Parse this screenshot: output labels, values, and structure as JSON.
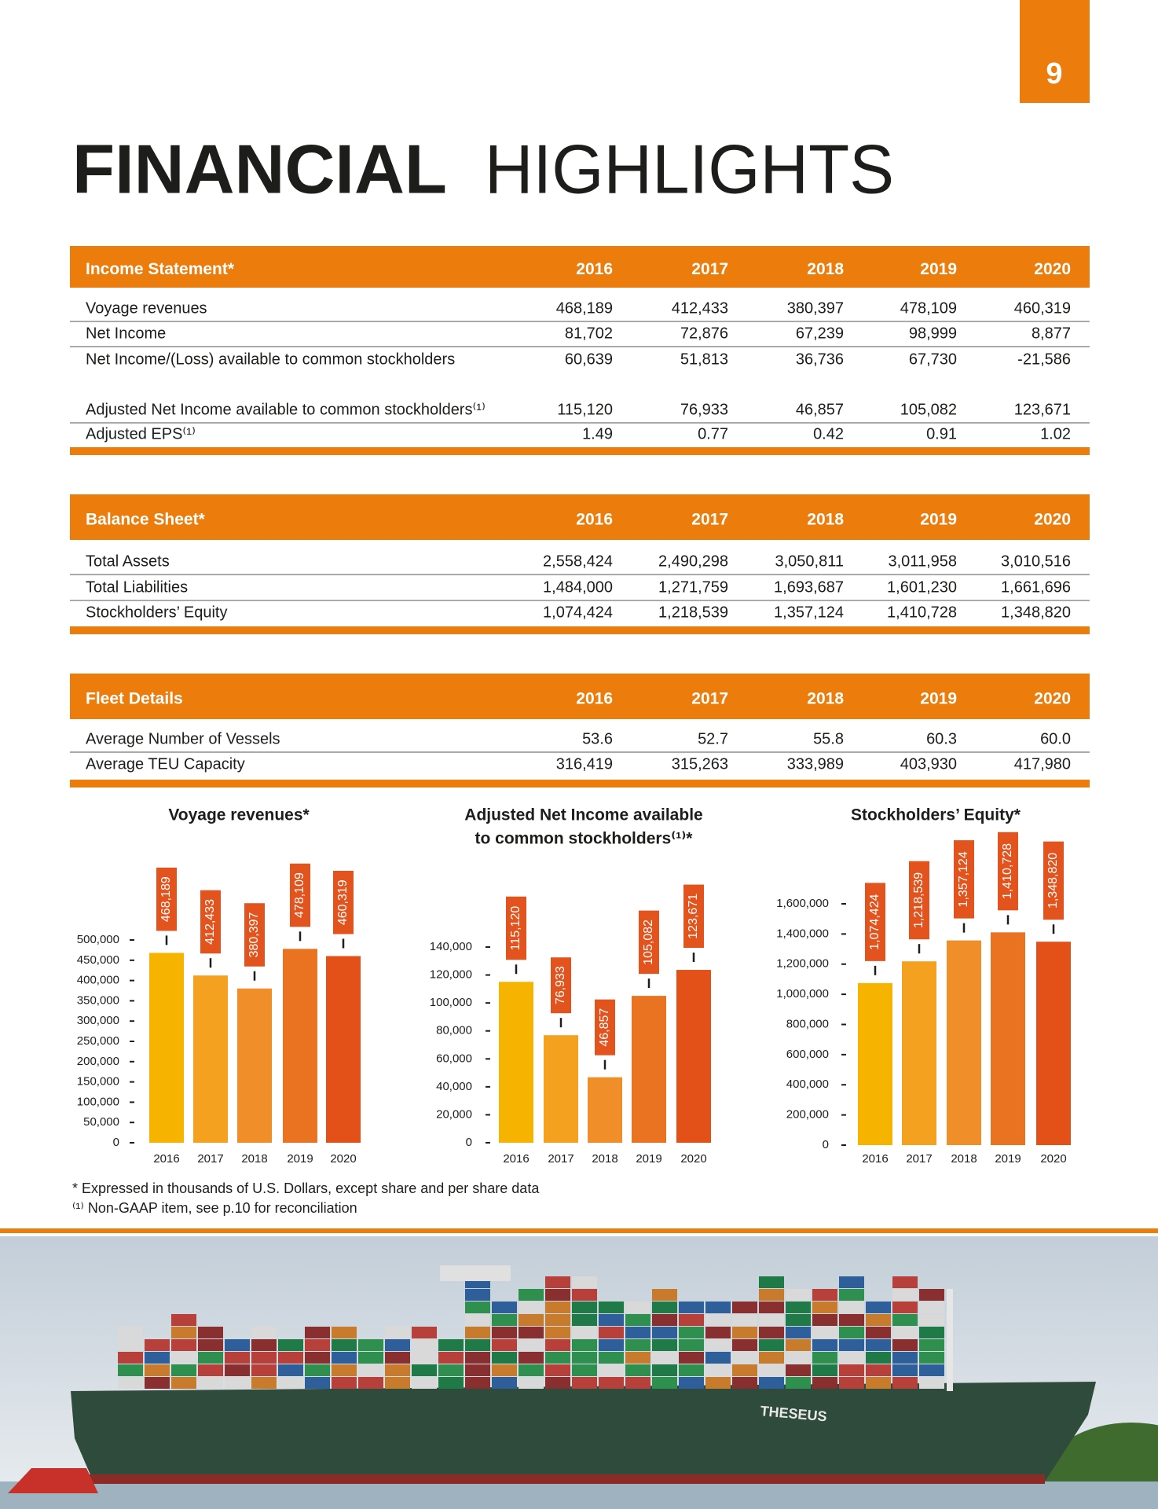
{
  "page_number": "9",
  "title_bold": "FINANCIAL",
  "title_light": "HIGHLIGHTS",
  "tables": [
    {
      "header": [
        "Income Statement*",
        "2016",
        "2017",
        "2018",
        "2019",
        "2020"
      ],
      "rows": [
        [
          "Voyage revenues",
          "468,189",
          "412,433",
          "380,397",
          "478,109",
          "460,319"
        ],
        [
          "Net Income",
          "81,702",
          "72,876",
          "67,239",
          "98,999",
          "8,877"
        ],
        [
          "Net Income/(Loss) available to common stockholders",
          "60,639",
          "51,813",
          "36,736",
          "67,730",
          "-21,586"
        ],
        [
          "Adjusted Net Income available to common stockholders⁽¹⁾",
          "115,120",
          "76,933",
          "46,857",
          "105,082",
          "123,671"
        ],
        [
          "Adjusted EPS⁽¹⁾",
          "1.49",
          "0.77",
          "0.42",
          "0.91",
          "1.02"
        ]
      ]
    },
    {
      "header": [
        "Balance Sheet*",
        "2016",
        "2017",
        "2018",
        "2019",
        "2020"
      ],
      "rows": [
        [
          "Total Assets",
          "2,558,424",
          "2,490,298",
          "3,050,811",
          "3,011,958",
          "3,010,516"
        ],
        [
          "Total Liabilities",
          "1,484,000",
          "1,271,759",
          "1,693,687",
          "1,601,230",
          "1,661,696"
        ],
        [
          "Stockholders’ Equity",
          "1,074,424",
          "1,218,539",
          "1,357,124",
          "1,410,728",
          "1,348,820"
        ]
      ]
    },
    {
      "header": [
        "Fleet Details",
        "2016",
        "2017",
        "2018",
        "2019",
        "2020"
      ],
      "rows": [
        [
          "Average Number of Vessels",
          "53.6",
          "52.7",
          "55.8",
          "60.3",
          "60.0"
        ],
        [
          "Average TEU Capacity",
          "316,419",
          "315,263",
          "333,989",
          "403,930",
          "417,980"
        ]
      ]
    }
  ],
  "chart_data": [
    {
      "type": "bar",
      "title": "Voyage revenues*",
      "categories": [
        "2016",
        "2017",
        "2018",
        "2019",
        "2020"
      ],
      "values": [
        468189,
        412433,
        380397,
        478109,
        460319
      ],
      "value_labels": [
        "468,189",
        "412,433",
        "380,397",
        "478,109",
        "460,319"
      ],
      "colors": [
        "#f6b400",
        "#f4a11f",
        "#f08f29",
        "#ea7322",
        "#e35119"
      ],
      "ylim": [
        0,
        500000
      ],
      "yticks": [
        0,
        {
          "value": 50000,
          "label": "50,000"
        },
        {
          "value": 100000,
          "label": "100,000"
        },
        {
          "value": 150000,
          "label": "150,000"
        },
        {
          "value": 200000,
          "label": "200,000"
        },
        {
          "value": 250000,
          "label": "250,000"
        },
        {
          "value": 300000,
          "label": "300,000"
        },
        {
          "value": 350000,
          "label": "350,000"
        },
        {
          "value": 400000,
          "label": "400,000"
        },
        {
          "value": 450000,
          "label": "450,000"
        },
        {
          "value": 500000,
          "label": "500,000"
        }
      ]
    },
    {
      "type": "bar",
      "title": [
        "Adjusted Net Income available",
        "to common stockholders⁽¹⁾*"
      ],
      "categories": [
        "2016",
        "2017",
        "2018",
        "2019",
        "2020"
      ],
      "values": [
        115120,
        76933,
        46857,
        105082,
        123671
      ],
      "value_labels": [
        "115,120",
        "76,933",
        "46,857",
        "105,082",
        "123,671"
      ],
      "colors": [
        "#f6b400",
        "#f4a11f",
        "#f08f29",
        "#ea7322",
        "#e35119"
      ],
      "ylim": [
        0,
        140000
      ],
      "yticks": [
        0,
        {
          "value": 20000,
          "label": "20,000"
        },
        {
          "value": 40000,
          "label": "40,000"
        },
        {
          "value": 60000,
          "label": "60,000"
        },
        {
          "value": 80000,
          "label": "80,000"
        },
        {
          "value": 100000,
          "label": "100,000"
        },
        {
          "value": 120000,
          "label": "120,000"
        },
        {
          "value": 140000,
          "label": "140,000"
        }
      ]
    },
    {
      "type": "bar",
      "title": "Stockholders’ Equity*",
      "categories": [
        "2016",
        "2017",
        "2018",
        "2019",
        "2020"
      ],
      "values": [
        1074424,
        1218539,
        1357124,
        1410728,
        1348820
      ],
      "value_labels": [
        "1,074,424",
        "1,218,539",
        "1,357,124",
        "1,410,728",
        "1,348,820"
      ],
      "colors": [
        "#f6b400",
        "#f4a11f",
        "#f08f29",
        "#ea7322",
        "#e35119"
      ],
      "ylim": [
        0,
        1600000
      ],
      "yticks": [
        0,
        {
          "value": 200000,
          "label": "200,000"
        },
        {
          "value": 400000,
          "label": "400,000"
        },
        {
          "value": 600000,
          "label": "600,000"
        },
        {
          "value": 800000,
          "label": "800,000"
        },
        {
          "value": 1000000,
          "label": "1,000,000"
        },
        {
          "value": 1200000,
          "label": "1,200,000"
        },
        {
          "value": 1400000,
          "label": "1,400,000"
        },
        {
          "value": 1600000,
          "label": "1,600,000"
        }
      ]
    }
  ],
  "footnotes": [
    "* Expressed in thousands of U.S. Dollars, except share and per share data",
    "⁽¹⁾ Non-GAAP item, see p.10 for reconciliation"
  ],
  "ship_name": "THESEUS"
}
